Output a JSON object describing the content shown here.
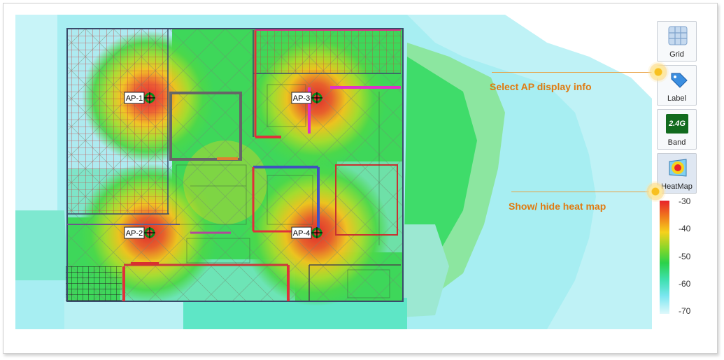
{
  "toolbar": {
    "grid_label": "Grid",
    "label_label": "Label",
    "band_label": "Band",
    "band_text": "2.4G",
    "heatmap_label": "HeatMap"
  },
  "aps": [
    {
      "name": "AP-1"
    },
    {
      "name": "AP-2"
    },
    {
      "name": "AP-3"
    },
    {
      "name": "AP-4"
    }
  ],
  "legend": {
    "ticks": [
      "-30",
      "-40",
      "-50",
      "-60",
      "-70"
    ],
    "colors": {
      "strong": "#e8222a",
      "mid": "#f5d21c",
      "good": "#2bd24a",
      "weak": "#7ae6f0",
      "weakest": "#e0f8fb"
    }
  },
  "callouts": {
    "ap_info": "Select AP display info",
    "heatmap": "Show/ hide heat map"
  }
}
